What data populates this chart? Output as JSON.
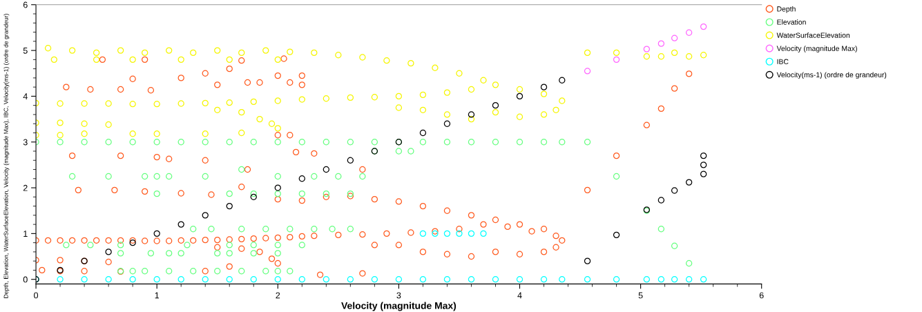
{
  "chart_data": {
    "type": "scatter",
    "xlabel": "Velocity (magnitude Max)",
    "ylabel": "Depth, Elevation, WaterSurfaceElevation, Velocity (magnitude Max), IBC, Velocity(ms-1) (ordre de grandeur)",
    "marker": "circle",
    "legend": "top right",
    "grid": false,
    "xlim": [
      0,
      6
    ],
    "ylim": [
      -0.1,
      6
    ],
    "xticks": [
      0,
      {
        "value": 0.2,
        "label": null
      },
      {
        "value": 0.4,
        "label": null
      },
      {
        "value": 0.6,
        "label": null
      },
      {
        "value": 0.8,
        "label": null
      },
      1,
      {
        "value": 1.2,
        "label": null
      },
      {
        "value": 1.4,
        "label": null
      },
      {
        "value": 1.6,
        "label": null
      },
      {
        "value": 1.8,
        "label": null
      },
      2,
      {
        "value": 2.2,
        "label": null
      },
      {
        "value": 2.4,
        "label": null
      },
      {
        "value": 2.6,
        "label": null
      },
      {
        "value": 2.8,
        "label": null
      },
      3,
      {
        "value": 3.2,
        "label": null
      },
      {
        "value": 3.4,
        "label": null
      },
      {
        "value": 3.6,
        "label": null
      },
      {
        "value": 3.8,
        "label": null
      },
      4,
      {
        "value": 4.2,
        "label": null
      },
      {
        "value": 4.4,
        "label": null
      },
      {
        "value": 4.6,
        "label": null
      },
      {
        "value": 4.8,
        "label": null
      },
      5,
      {
        "value": 5.2,
        "label": null
      },
      {
        "value": 5.4,
        "label": null
      },
      {
        "value": 5.6,
        "label": null
      },
      {
        "value": 5.8,
        "label": null
      },
      6
    ],
    "yticks": [
      0,
      {
        "value": 0.2,
        "label": null
      },
      {
        "value": 0.4,
        "label": null
      },
      {
        "value": 0.6,
        "label": null
      },
      {
        "value": 0.8,
        "label": null
      },
      1,
      {
        "value": 1.2,
        "label": null
      },
      {
        "value": 1.4,
        "label": null
      },
      {
        "value": 1.6,
        "label": null
      },
      {
        "value": 1.8,
        "label": null
      },
      2,
      {
        "value": 2.2,
        "label": null
      },
      {
        "value": 2.4,
        "label": null
      },
      {
        "value": 2.6,
        "label": null
      },
      {
        "value": 2.8,
        "label": null
      },
      3,
      {
        "value": 3.2,
        "label": null
      },
      {
        "value": 3.4,
        "label": null
      },
      {
        "value": 3.6,
        "label": null
      },
      {
        "value": 3.8,
        "label": null
      },
      4,
      {
        "value": 4.2,
        "label": null
      },
      {
        "value": 4.4,
        "label": null
      },
      {
        "value": 4.6,
        "label": null
      },
      {
        "value": 4.8,
        "label": null
      },
      5,
      {
        "value": 5.2,
        "label": null
      },
      {
        "value": 5.4,
        "label": null
      },
      {
        "value": 5.6,
        "label": null
      },
      {
        "value": 5.8,
        "label": null
      },
      6
    ],
    "series": [
      {
        "name": "Depth",
        "color": "#ff5a1e",
        "x": [
          0,
          0.1,
          0.2,
          0.3,
          0.4,
          0.5,
          0.6,
          0.7,
          0.8,
          0.9,
          1.0,
          1.1,
          1.2,
          1.3,
          1.4,
          1.5,
          1.6,
          1.7,
          1.8,
          1.9,
          2.0,
          2.1,
          2.2,
          2.3,
          2.5,
          2.7,
          2.9,
          3.1,
          3.3,
          3.5,
          3.7,
          3.9,
          4.1,
          4.3,
          4.35,
          4.3,
          4.2,
          4.0,
          3.8,
          3.6,
          3.4,
          3.2,
          3.0,
          2.8,
          2.0,
          2.2,
          2.4,
          2.6,
          2.8,
          3.0,
          3.2,
          3.4,
          3.6,
          3.8,
          4.0,
          4.2,
          1.5,
          1.7,
          1.85,
          1.95,
          2.0,
          0,
          0.2,
          0.4,
          0.6,
          0.05,
          0.2,
          0.4,
          0.7,
          1.4,
          1.6,
          2.35,
          2.7,
          0.3,
          0.7,
          1.0,
          1.1,
          1.4,
          0.35,
          0.65,
          0.9,
          1.2,
          1.45,
          1.7,
          1.75,
          0.25,
          0.45,
          0.7,
          0.8,
          0.95,
          1.2,
          1.4,
          1.5,
          1.6,
          1.75,
          1.85,
          2.0,
          2.1,
          2.2,
          2.2,
          2.0,
          2.1,
          2.15,
          2.3,
          0.55,
          0.9,
          1.7,
          2.05,
          2.7,
          4.56,
          4.8,
          5.05,
          5.17,
          5.28,
          5.4
        ],
        "values": [
          0.85,
          0.85,
          0.85,
          0.85,
          0.85,
          0.85,
          0.85,
          0.85,
          0.85,
          0.84,
          0.84,
          0.84,
          0.85,
          0.85,
          0.86,
          0.86,
          0.87,
          0.88,
          0.89,
          0.9,
          0.91,
          0.92,
          0.94,
          0.95,
          0.97,
          0.98,
          1.0,
          1.02,
          1.05,
          1.1,
          1.2,
          1.15,
          1.05,
          0.95,
          0.85,
          0.7,
          0.6,
          0.55,
          0.6,
          0.5,
          0.55,
          0.6,
          0.75,
          0.75,
          1.75,
          1.72,
          1.8,
          1.82,
          1.75,
          1.7,
          1.6,
          1.5,
          1.4,
          1.3,
          1.2,
          1.1,
          0.7,
          0.67,
          0.6,
          0.45,
          0.35,
          0.42,
          0.42,
          0.4,
          0.38,
          0.2,
          0.18,
          0.18,
          0.17,
          0.18,
          0.28,
          0.1,
          0.13,
          2.7,
          2.7,
          2.67,
          2.63,
          2.6,
          1.95,
          1.95,
          1.92,
          1.88,
          1.85,
          2.02,
          2.4,
          4.2,
          4.15,
          4.15,
          4.38,
          4.13,
          4.4,
          4.5,
          4.25,
          4.6,
          4.3,
          4.3,
          4.45,
          4.3,
          4.25,
          4.45,
          3.15,
          3.15,
          2.78,
          2.75,
          4.8,
          4.8,
          4.78,
          4.82,
          2.4,
          1.95,
          2.7,
          3.37,
          3.73,
          4.17,
          4.49
        ]
      },
      {
        "name": "Elevation",
        "color": "#66ff80",
        "x": [
          0,
          0.2,
          0.4,
          0.6,
          0.8,
          1.0,
          1.2,
          1.4,
          1.6,
          1.8,
          2.0,
          2.2,
          2.4,
          2.6,
          2.8,
          3.0,
          3.2,
          3.4,
          3.6,
          3.8,
          4.0,
          4.2,
          4.35,
          0.3,
          0.6,
          0.9,
          1.0,
          1.1,
          1.4,
          1.7,
          2.0,
          2.3,
          2.5,
          2.7,
          2.8,
          3.0,
          3.1,
          1.0,
          1.6,
          1.8,
          2.0,
          2.2,
          2.4,
          2.6,
          1.3,
          1.45,
          1.7,
          1.9,
          2.1,
          2.3,
          2.45,
          2.6,
          0.25,
          0.45,
          0.7,
          1.25,
          1.6,
          1.8,
          2.0,
          2.2,
          0.7,
          0.95,
          1.1,
          1.2,
          1.5,
          1.6,
          1.8,
          2.0,
          0.7,
          0.8,
          0.9,
          1.1,
          1.3,
          1.5,
          1.7,
          1.9,
          2.0,
          2.1,
          4.56,
          4.8,
          5.05,
          5.17,
          5.28,
          5.4
        ],
        "values": [
          3,
          3,
          3,
          3,
          3,
          3,
          3,
          3,
          3,
          3,
          3,
          3,
          3,
          3,
          3,
          3,
          3,
          3,
          3,
          3,
          3,
          3,
          3,
          2.25,
          2.25,
          2.25,
          2.25,
          2.25,
          2.25,
          2.4,
          2.25,
          2.25,
          2.25,
          2.25,
          2.8,
          2.8,
          2.8,
          1.87,
          1.87,
          1.87,
          1.87,
          1.87,
          1.87,
          1.87,
          1.1,
          1.1,
          1.1,
          1.1,
          1.1,
          1.1,
          1.1,
          1.1,
          0.75,
          0.75,
          0.75,
          0.75,
          0.75,
          0.75,
          0.75,
          0.75,
          0.57,
          0.57,
          0.57,
          0.57,
          0.57,
          0.57,
          0.57,
          0.57,
          0.18,
          0.18,
          0.18,
          0.18,
          0.18,
          0.18,
          0.18,
          0.18,
          0.18,
          0.18,
          3.0,
          2.25,
          1.5,
          1.1,
          0.73,
          0.35
        ]
      },
      {
        "name": "WaterSurfaceElevation",
        "color": "#f5f500",
        "x": [
          0.1,
          0.3,
          0.5,
          0.7,
          0.9,
          1.1,
          1.3,
          1.5,
          1.7,
          1.9,
          2.1,
          2.3,
          2.5,
          2.7,
          2.9,
          3.1,
          3.3,
          3.5,
          3.7,
          0.15,
          0.5,
          0.8,
          1.2,
          1.6,
          2.0,
          0,
          0.2,
          0.4,
          0.6,
          0.8,
          1.0,
          1.2,
          1.4,
          1.6,
          1.8,
          2.0,
          2.2,
          2.4,
          2.6,
          2.8,
          3.0,
          3.2,
          3.4,
          3.6,
          3.8,
          4.0,
          4.2,
          4.35,
          4.3,
          4.2,
          4.0,
          3.8,
          3.6,
          3.4,
          3.2,
          3.0,
          1.5,
          1.7,
          1.85,
          1.95,
          2.0,
          0,
          0.2,
          0.4,
          0.6,
          0,
          0.2,
          0.4,
          0.8,
          1.0,
          1.4,
          1.7,
          4.56,
          4.8,
          5.05,
          5.17,
          5.28,
          5.4,
          5.52
        ],
        "values": [
          5.05,
          5.0,
          4.95,
          5.0,
          4.95,
          5.0,
          4.95,
          5.0,
          4.95,
          5.0,
          4.97,
          4.95,
          4.9,
          4.85,
          4.78,
          4.72,
          4.62,
          4.5,
          4.35,
          4.8,
          4.8,
          4.8,
          4.8,
          4.8,
          4.8,
          3.85,
          3.84,
          3.84,
          3.84,
          3.83,
          3.83,
          3.84,
          3.85,
          3.86,
          3.88,
          3.9,
          3.93,
          3.95,
          3.97,
          3.98,
          4.0,
          4.03,
          4.08,
          4.15,
          4.25,
          4.15,
          4.05,
          3.9,
          3.7,
          3.6,
          3.55,
          3.65,
          3.5,
          3.6,
          3.7,
          3.75,
          3.7,
          3.65,
          3.5,
          3.4,
          3.3,
          3.42,
          3.42,
          3.4,
          3.38,
          3.15,
          3.15,
          3.18,
          3.18,
          3.18,
          3.18,
          3.2,
          4.95,
          4.95,
          4.87,
          4.87,
          4.95,
          4.87,
          4.9
        ]
      },
      {
        "name": "Velocity (magnitude Max)",
        "color": "#ff66ff",
        "x": [
          4.56,
          4.8,
          5.05,
          5.17,
          5.28,
          5.4,
          5.52
        ],
        "values": [
          4.55,
          4.8,
          5.03,
          5.15,
          5.27,
          5.39,
          5.52
        ]
      },
      {
        "name": "IBC",
        "color": "#00ffff",
        "x": [
          0,
          0.2,
          0.4,
          0.6,
          0.8,
          1.0,
          1.2,
          1.4,
          1.6,
          1.8,
          2.0,
          2.2,
          2.4,
          2.6,
          2.8,
          3.0,
          3.2,
          3.4,
          3.6,
          3.8,
          4.0,
          4.2,
          4.35,
          3.2,
          3.3,
          3.4,
          3.5,
          3.6,
          3.7,
          4.56,
          4.8,
          5.05,
          5.17,
          5.28,
          5.4,
          5.52
        ],
        "values": [
          0,
          0,
          0,
          0,
          0,
          0,
          0,
          0,
          0,
          0,
          0,
          0,
          0,
          0,
          0,
          0,
          0,
          0,
          0,
          0,
          0,
          0,
          0,
          1.0,
          1.0,
          1.0,
          1.0,
          1.0,
          1.0,
          0,
          0,
          0,
          0,
          0,
          0,
          0
        ]
      },
      {
        "name": "Velocity(ms-1) (ordre de grandeur)",
        "color": "#000000",
        "x": [
          0,
          0.2,
          0.4,
          0.6,
          0.8,
          1.0,
          1.2,
          1.4,
          1.6,
          1.8,
          2.0,
          2.2,
          2.4,
          2.6,
          2.8,
          3.0,
          3.2,
          3.4,
          3.6,
          3.8,
          4.0,
          4.2,
          4.35,
          4.56,
          4.8,
          5.05,
          5.17,
          5.28,
          5.4,
          5.52,
          5.52,
          5.52
        ],
        "values": [
          0,
          0.2,
          0.4,
          0.6,
          0.8,
          1.0,
          1.2,
          1.4,
          1.6,
          1.8,
          2.0,
          2.2,
          2.4,
          2.6,
          2.8,
          3.0,
          3.2,
          3.4,
          3.6,
          3.8,
          4.0,
          4.2,
          4.35,
          0.4,
          0.97,
          1.52,
          1.73,
          1.94,
          2.12,
          2.3,
          2.5,
          2.7
        ]
      }
    ]
  }
}
